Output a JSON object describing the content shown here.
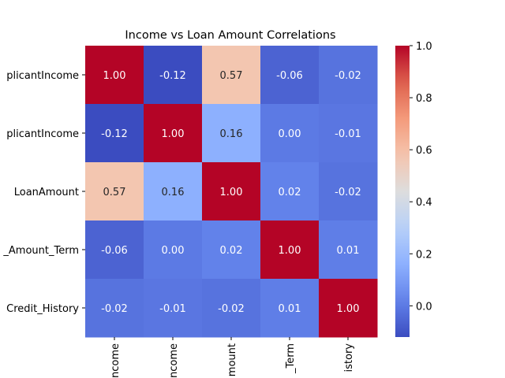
{
  "chart_data": {
    "type": "heatmap",
    "title": "Income vs Loan Amount Correlations",
    "row_labels": [
      "plicantIncome",
      "plicantIncome",
      "LoanAmount",
      "_Amount_Term",
      "Credit_History"
    ],
    "col_labels": [
      "ncome",
      "ncome",
      "mount",
      "_Term",
      "istory"
    ],
    "values": [
      [
        1.0,
        -0.12,
        0.57,
        -0.06,
        -0.02
      ],
      [
        -0.12,
        1.0,
        0.16,
        -0.0,
        -0.01
      ],
      [
        0.57,
        0.16,
        1.0,
        0.02,
        -0.02
      ],
      [
        -0.06,
        -0.0,
        0.02,
        1.0,
        0.01
      ],
      [
        -0.02,
        -0.01,
        -0.02,
        0.01,
        1.0
      ]
    ],
    "value_format_decimals": 2,
    "colormap": "coolwarm",
    "color_range": [
      -0.12,
      1.0
    ],
    "colorbar_ticks": [
      0.0,
      0.2,
      0.4,
      0.6,
      0.8,
      1.0
    ],
    "colorbar_tick_labels": [
      "0.0",
      "0.2",
      "0.4",
      "0.6",
      "0.8",
      "1.0"
    ]
  }
}
